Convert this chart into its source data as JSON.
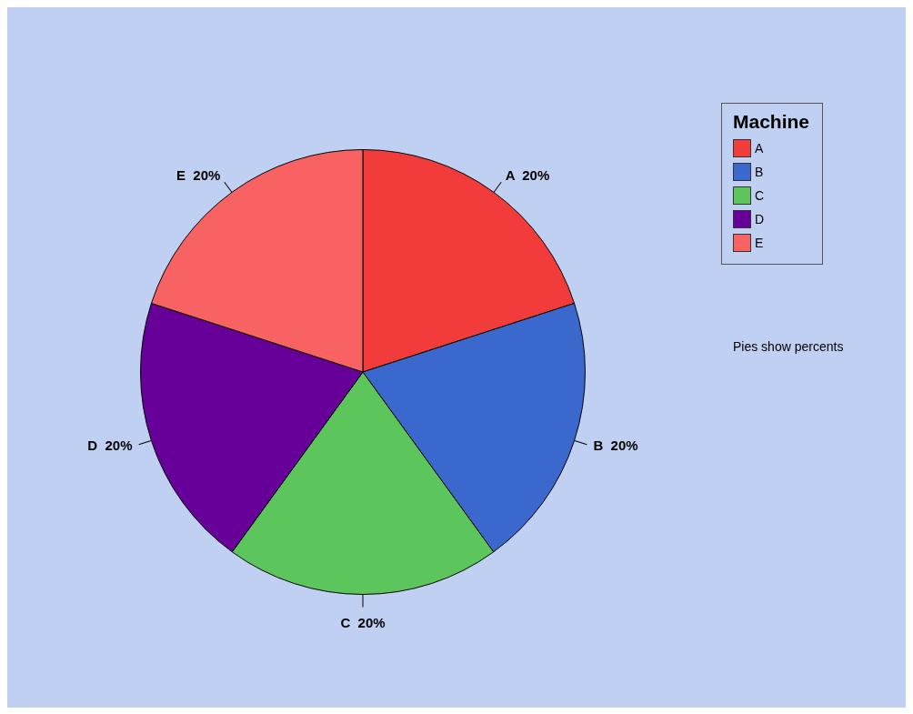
{
  "chart_data": {
    "type": "pie",
    "legend_title": "Machine",
    "legend": "top right",
    "categories": [
      "A",
      "B",
      "C",
      "D",
      "E"
    ],
    "values": [
      20,
      20,
      20,
      20,
      20
    ],
    "value_labels": [
      "20%",
      "20%",
      "20%",
      "20%",
      "20%"
    ],
    "colors": [
      "#f23c3c",
      "#3a68cc",
      "#5cc65c",
      "#660099",
      "#f86262"
    ],
    "annotations": [
      "Pies show percents"
    ]
  }
}
